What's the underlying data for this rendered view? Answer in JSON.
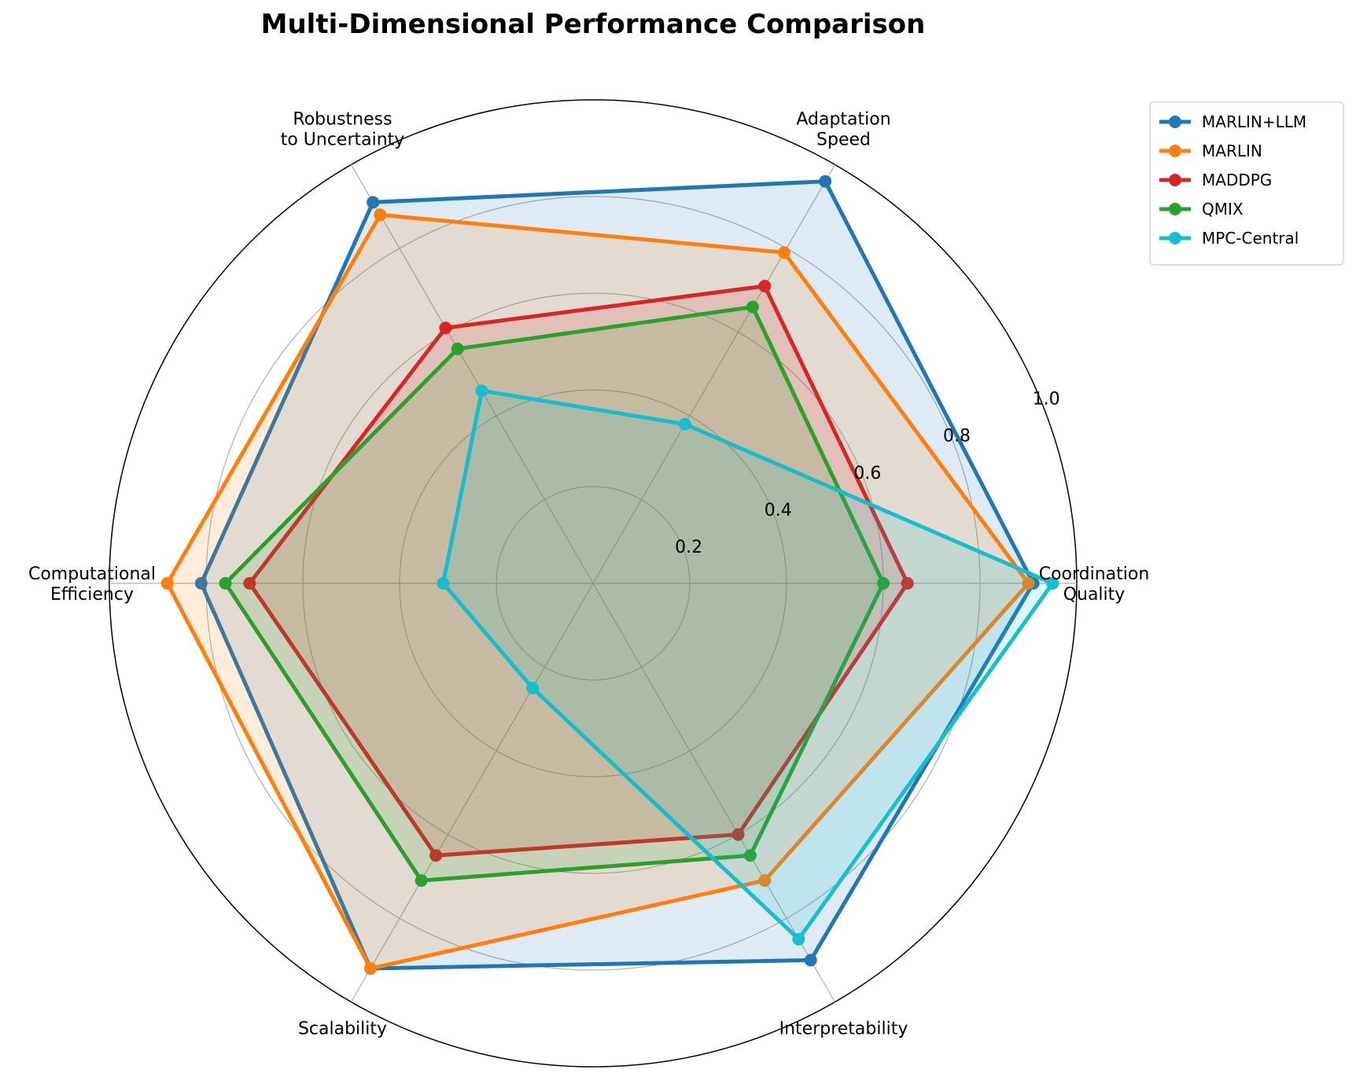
{
  "chart_data": {
    "type": "radar",
    "title": "Multi-Dimensional Performance Comparison",
    "axes": [
      [
        "Coordination",
        "Quality"
      ],
      [
        "Adaptation",
        "Speed"
      ],
      [
        "Robustness",
        "to Uncertainty"
      ],
      [
        "Computational",
        "Efficiency"
      ],
      [
        "Scalability"
      ],
      [
        "Interpretability"
      ]
    ],
    "rlim": [
      0,
      1.0
    ],
    "rticks": [
      "0.2",
      "0.4",
      "0.6",
      "0.8",
      "1.0"
    ],
    "rtick_values": [
      0.2,
      0.4,
      0.6,
      0.8,
      1.0
    ],
    "grid": true,
    "legend_position": "upper-right outside",
    "series": [
      {
        "name": "MARLIN+LLM",
        "color": "#1f77b4",
        "values": [
          0.91,
          0.96,
          0.91,
          0.81,
          0.92,
          0.9
        ]
      },
      {
        "name": "MARLIN",
        "color": "#ff7f0e",
        "values": [
          0.9,
          0.79,
          0.88,
          0.88,
          0.92,
          0.71
        ]
      },
      {
        "name": "MADDPG",
        "color": "#d62728",
        "values": [
          0.65,
          0.71,
          0.61,
          0.71,
          0.65,
          0.6
        ]
      },
      {
        "name": "QMIX",
        "color": "#2ca02c",
        "values": [
          0.6,
          0.66,
          0.56,
          0.76,
          0.71,
          0.65
        ]
      },
      {
        "name": "MPC-Central",
        "color": "#17becf",
        "values": [
          0.95,
          0.38,
          0.46,
          0.31,
          0.25,
          0.85
        ]
      }
    ]
  }
}
